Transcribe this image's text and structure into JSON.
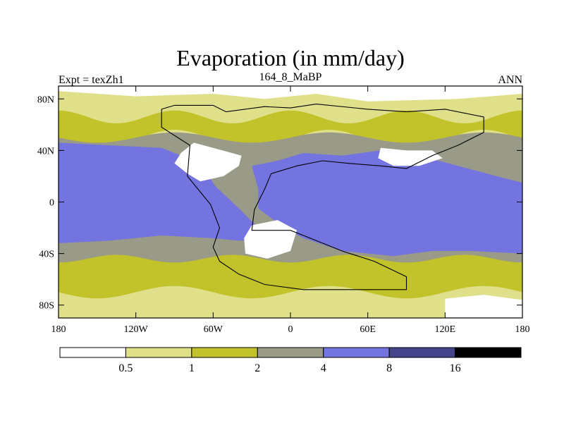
{
  "chart_data": {
    "type": "heatmap",
    "title": "Evaporation (in mm/day)",
    "left_label": "Expt = texZh1",
    "center_label": "164_8_MaBP",
    "right_label": "ANN",
    "x_ticks": [
      {
        "value": -180,
        "label": "180"
      },
      {
        "value": -120,
        "label": "120W"
      },
      {
        "value": -60,
        "label": "60W"
      },
      {
        "value": 0,
        "label": "0"
      },
      {
        "value": 60,
        "label": "60E"
      },
      {
        "value": 120,
        "label": "120E"
      },
      {
        "value": 180,
        "label": "180"
      }
    ],
    "y_ticks": [
      {
        "value": 80,
        "label": "80N"
      },
      {
        "value": 40,
        "label": "40N"
      },
      {
        "value": 0,
        "label": "0"
      },
      {
        "value": -40,
        "label": "40S"
      },
      {
        "value": -80,
        "label": "80S"
      }
    ],
    "xlim": [
      -180,
      180
    ],
    "ylim": [
      -90,
      90
    ],
    "colorbar": {
      "levels": [
        {
          "label": "0.5",
          "value": 0.5
        },
        {
          "label": "1",
          "value": 1
        },
        {
          "label": "2",
          "value": 2
        },
        {
          "label": "4",
          "value": 4
        },
        {
          "label": "8",
          "value": 8
        },
        {
          "label": "16",
          "value": 16
        }
      ],
      "colors": [
        "#ffffff",
        "#e0e08a",
        "#c2c22a",
        "#9a9a88",
        "#7474e0",
        "#45458c",
        "#000000"
      ]
    },
    "regions": [
      {
        "name": "tropical-ocean-high",
        "class": 4,
        "lonlat": [
          [
            -180,
            46
          ],
          [
            -140,
            44
          ],
          [
            -100,
            42
          ],
          [
            -70,
            30
          ],
          [
            -58,
            12
          ],
          [
            -40,
            -5
          ],
          [
            -25,
            -20
          ],
          [
            -20,
            -30
          ],
          [
            -40,
            -30
          ],
          [
            -62,
            -28
          ],
          [
            -100,
            -26
          ],
          [
            -140,
            -30
          ],
          [
            -180,
            -32
          ]
        ]
      },
      {
        "name": "tethys-ocean-high",
        "class": 4,
        "lonlat": [
          [
            -30,
            28
          ],
          [
            -10,
            32
          ],
          [
            10,
            38
          ],
          [
            40,
            36
          ],
          [
            70,
            40
          ],
          [
            100,
            36
          ],
          [
            130,
            28
          ],
          [
            160,
            20
          ],
          [
            180,
            15
          ],
          [
            180,
            -40
          ],
          [
            140,
            -38
          ],
          [
            110,
            -38
          ],
          [
            80,
            -42
          ],
          [
            40,
            -38
          ],
          [
            10,
            -28
          ],
          [
            -5,
            -20
          ],
          [
            -25,
            -5
          ],
          [
            -25,
            10
          ]
        ]
      },
      {
        "name": "pangea-north-interior",
        "class": 0,
        "lonlat": [
          [
            -85,
            38
          ],
          [
            -75,
            46
          ],
          [
            -60,
            42
          ],
          [
            -38,
            36
          ],
          [
            -40,
            28
          ],
          [
            -52,
            20
          ],
          [
            -70,
            16
          ],
          [
            -80,
            22
          ],
          [
            -90,
            30
          ]
        ]
      },
      {
        "name": "pangea-south-interior",
        "class": 0,
        "lonlat": [
          [
            -30,
            -18
          ],
          [
            -10,
            -14
          ],
          [
            5,
            -22
          ],
          [
            0,
            -38
          ],
          [
            -18,
            -44
          ],
          [
            -35,
            -40
          ],
          [
            -36,
            -28
          ]
        ]
      },
      {
        "name": "asia-interior",
        "class": 0,
        "lonlat": [
          [
            70,
            42
          ],
          [
            90,
            40
          ],
          [
            110,
            40
          ],
          [
            118,
            34
          ],
          [
            100,
            28
          ],
          [
            80,
            28
          ],
          [
            68,
            34
          ]
        ]
      },
      {
        "name": "polar-north",
        "class": 0,
        "lonlat": [
          [
            -180,
            90
          ],
          [
            180,
            90
          ],
          [
            180,
            84
          ],
          [
            130,
            80
          ],
          [
            60,
            78
          ],
          [
            20,
            84
          ],
          [
            -20,
            80
          ],
          [
            -60,
            84
          ],
          [
            -120,
            82
          ],
          [
            -180,
            86
          ]
        ]
      },
      {
        "name": "polar-south",
        "class": 0,
        "lonlat": [
          [
            120,
            -75
          ],
          [
            150,
            -72
          ],
          [
            180,
            -76
          ],
          [
            180,
            -90
          ],
          [
            120,
            -90
          ]
        ]
      }
    ],
    "land_outline_lonlat": [
      [
        -90,
        75
      ],
      [
        -60,
        75
      ],
      [
        -50,
        70
      ],
      [
        -20,
        74
      ],
      [
        0,
        73
      ],
      [
        20,
        76
      ],
      [
        60,
        72
      ],
      [
        90,
        70
      ],
      [
        120,
        72
      ],
      [
        150,
        66
      ],
      [
        150,
        54
      ],
      [
        130,
        44
      ],
      [
        110,
        36
      ],
      [
        90,
        26
      ],
      [
        70,
        28
      ],
      [
        45,
        30
      ],
      [
        25,
        32
      ],
      [
        5,
        28
      ],
      [
        -15,
        22
      ],
      [
        -20,
        10
      ],
      [
        -28,
        -6
      ],
      [
        -30,
        -22
      ],
      [
        0,
        -22
      ],
      [
        20,
        -30
      ],
      [
        40,
        -38
      ],
      [
        65,
        -46
      ],
      [
        90,
        -58
      ],
      [
        90,
        -68
      ],
      [
        40,
        -68
      ],
      [
        10,
        -68
      ],
      [
        -20,
        -64
      ],
      [
        -40,
        -56
      ],
      [
        -55,
        -46
      ],
      [
        -60,
        -35
      ],
      [
        -55,
        -20
      ],
      [
        -62,
        -2
      ],
      [
        -80,
        20
      ],
      [
        -78,
        44
      ],
      [
        -100,
        58
      ],
      [
        -100,
        72
      ],
      [
        -90,
        75
      ]
    ]
  }
}
